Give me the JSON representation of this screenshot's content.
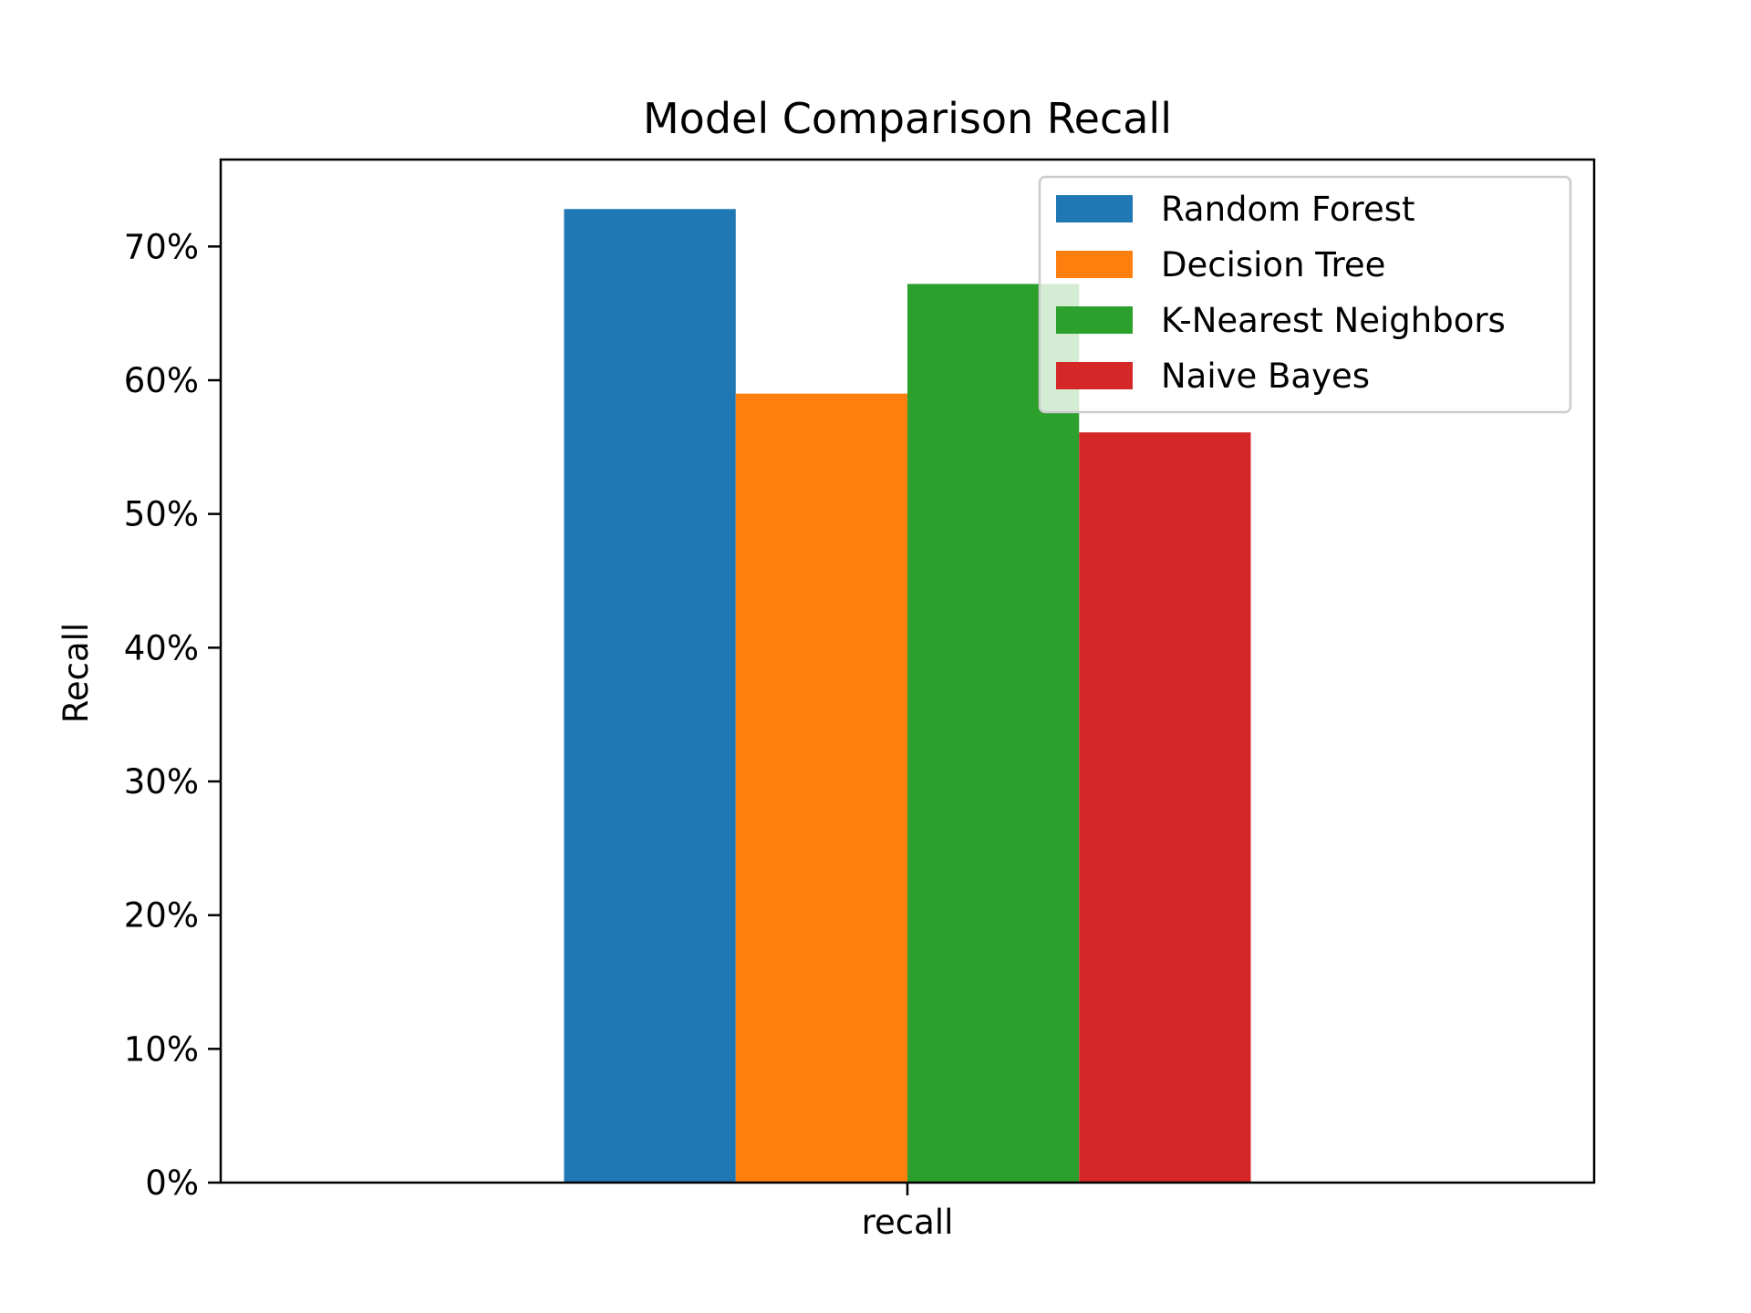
{
  "colors": {
    "background": "#ffffff",
    "axes": "#000000",
    "legend_frame": "#cccccc"
  },
  "chart_data": {
    "type": "bar",
    "title": "Model Comparison Recall",
    "xlabel": "",
    "ylabel": "Recall",
    "categories": [
      "recall"
    ],
    "ylim": [
      0,
      0.765
    ],
    "yticks": [
      0,
      0.1,
      0.2,
      0.3,
      0.4,
      0.5,
      0.6,
      0.7
    ],
    "ytick_labels": [
      "0%",
      "10%",
      "20%",
      "30%",
      "40%",
      "50%",
      "60%",
      "70%"
    ],
    "y_format": "percent",
    "grid": false,
    "legend_position": "top-right",
    "series": [
      {
        "name": "Random Forest",
        "color": "#1f77b4",
        "values": [
          0.728
        ]
      },
      {
        "name": "Decision Tree",
        "color": "#ff7f0e",
        "values": [
          0.59
        ]
      },
      {
        "name": "K-Nearest Neighbors",
        "color": "#2ca02c",
        "values": [
          0.672
        ]
      },
      {
        "name": "Naive Bayes",
        "color": "#d62728",
        "values": [
          0.561
        ]
      }
    ]
  }
}
